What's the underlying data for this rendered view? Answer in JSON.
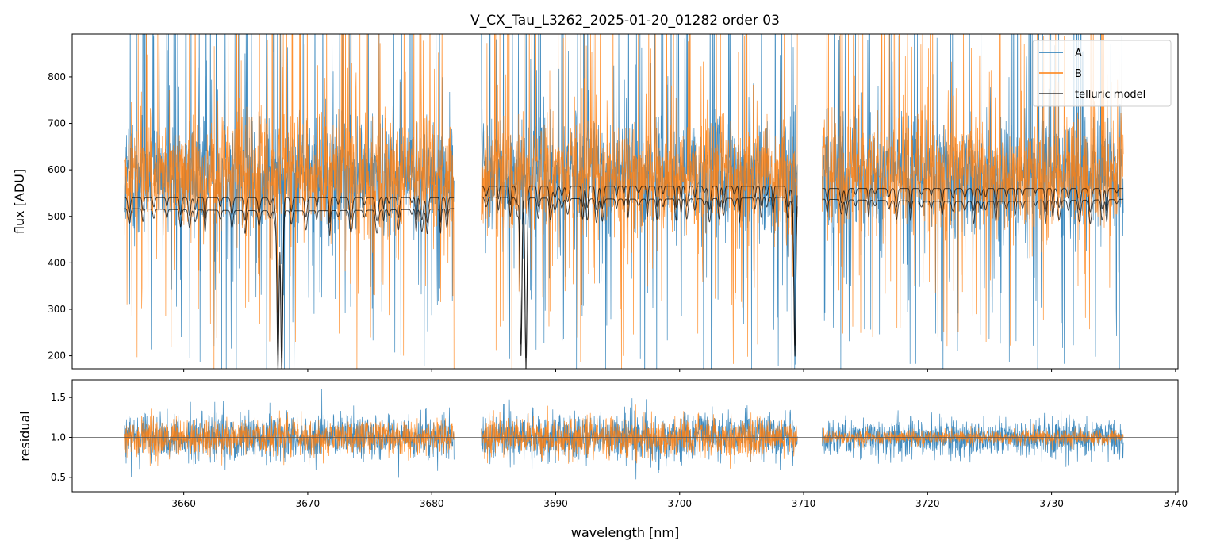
{
  "chart_data": {
    "type": "line",
    "title": "V_CX_Tau_L3262_2025-01-20_01282  order 03",
    "xlabel": "wavelength [nm]",
    "colors": {
      "A": "#1f77b4",
      "B": "#ff7f0e",
      "telluric": "#000000",
      "reference": "#555555"
    },
    "x_ticks": [
      "3660",
      "3670",
      "3680",
      "3690",
      "3700",
      "3710",
      "3720",
      "3730",
      "3740"
    ],
    "xlim": [
      3651,
      3740.2
    ],
    "segments": [
      [
        3655.2,
        3681.8
      ],
      [
        3684.0,
        3709.5
      ],
      [
        3711.5,
        3735.8
      ]
    ],
    "panels": [
      {
        "name": "flux",
        "ylabel": "flux [ADU]",
        "ylim": [
          172,
          892
        ],
        "y_ticks": [
          "200",
          "300",
          "400",
          "500",
          "600",
          "700",
          "800"
        ],
        "series": [
          {
            "name": "A",
            "kind": "noisy",
            "level": 590,
            "spread": 110,
            "spike": 380,
            "color": "#1f77b4"
          },
          {
            "name": "B",
            "kind": "noisy",
            "level": 590,
            "spread": 105,
            "spike": 320,
            "color": "#ff7f0e"
          },
          {
            "name": "telluric model",
            "kind": "telluric",
            "continuum": [
              540,
              565,
              560
            ],
            "offsets": [
              -8,
              -20
            ],
            "color": "#000000"
          }
        ],
        "telluric_strong_lines": [
          3667.6,
          3667.9,
          3687.2,
          3687.6,
          3709.3
        ],
        "legend": {
          "position": "top-right",
          "entries": [
            "A",
            "B",
            "telluric model"
          ]
        }
      },
      {
        "name": "residual",
        "ylabel": "residual",
        "ylim": [
          0.32,
          1.72
        ],
        "y_ticks": [
          "0.5",
          "1.0",
          "1.5"
        ],
        "reference_line": 1.0,
        "series": [
          {
            "name": "A",
            "spread": [
              0.3,
              0.32,
              0.26
            ],
            "color": "#1f77b4"
          },
          {
            "name": "B",
            "spread": [
              0.25,
              0.28,
              0.1
            ],
            "color": "#ff7f0e"
          }
        ]
      }
    ]
  }
}
